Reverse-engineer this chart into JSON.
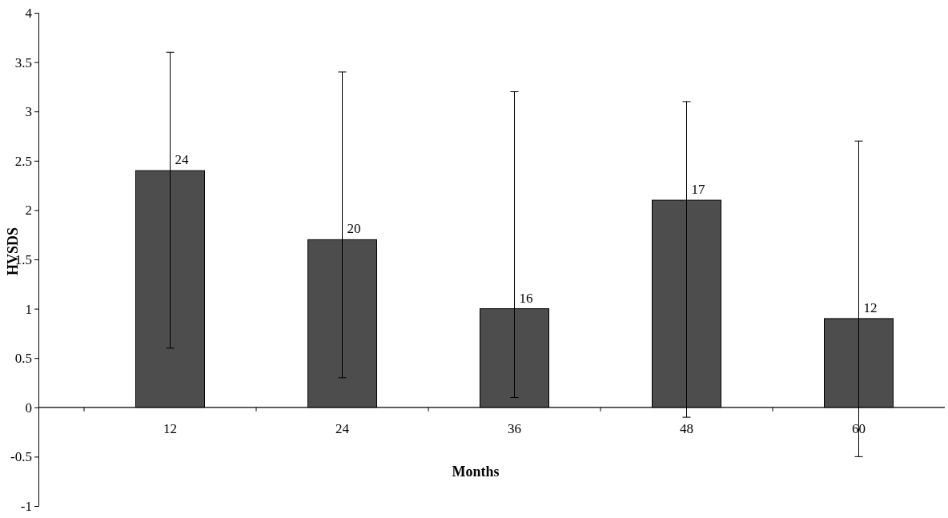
{
  "chart_data": {
    "type": "bar",
    "xlabel": "Months",
    "ylabel": "HVSDS",
    "categories": [
      "12",
      "24",
      "36",
      "48",
      "60"
    ],
    "values": [
      2.4,
      1.7,
      1.0,
      2.1,
      0.9
    ],
    "color": "#4d4d4d",
    "errors": [
      [
        0.6,
        3.6
      ],
      [
        0.3,
        3.4
      ],
      [
        0.1,
        3.2
      ],
      [
        -0.1,
        3.1
      ],
      [
        -0.5,
        2.7
      ]
    ],
    "ylim": [
      -1,
      4
    ],
    "yticks": [
      -1,
      -0.5,
      0,
      0.5,
      1,
      1.5,
      2,
      2.5,
      3,
      3.5,
      4
    ],
    "annotations": [
      {
        "text": "24",
        "x": "12",
        "y": 2.4
      },
      {
        "text": "20",
        "x": "24",
        "y": 1.7
      },
      {
        "text": "16",
        "x": "36",
        "y": 1.0
      },
      {
        "text": "17",
        "x": "48",
        "y": 2.1
      },
      {
        "text": "12",
        "x": "60",
        "y": 0.9
      }
    ]
  }
}
